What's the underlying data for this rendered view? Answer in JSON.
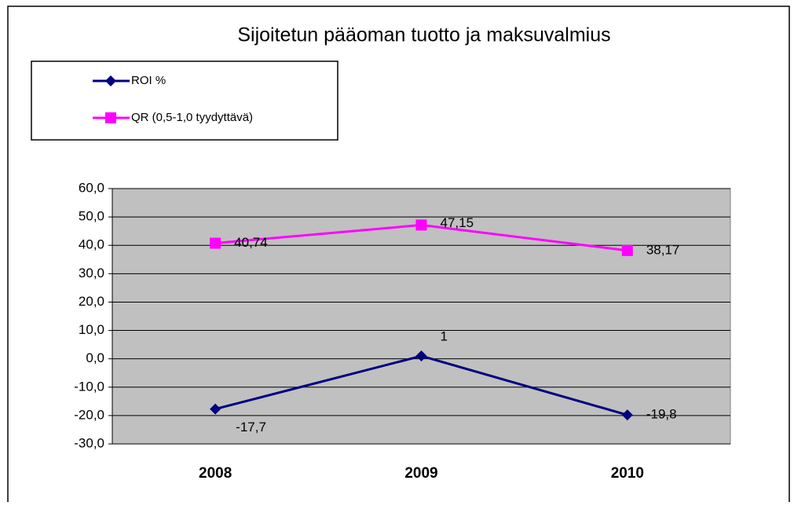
{
  "chart_data": {
    "type": "line",
    "title": "Sijoitetun pääoman tuotto ja maksuvalmius",
    "categories": [
      "2008",
      "2009",
      "2010"
    ],
    "series": [
      {
        "name": "ROI %",
        "color": "#000080",
        "marker": "diamond",
        "values": [
          -17.7,
          1,
          -19.8
        ],
        "value_labels": [
          "-17,7",
          "1",
          "-19,8"
        ]
      },
      {
        "name": "QR (0,5-1,0 tyydyttävä)",
        "color": "#ff00ff",
        "marker": "square",
        "values": [
          40.74,
          47.15,
          38.17
        ],
        "value_labels": [
          "40,74",
          "47,15",
          "38,17"
        ]
      }
    ],
    "ylim": [
      -30,
      60
    ],
    "yticks": [
      {
        "value": -30,
        "label": "-30,0"
      },
      {
        "value": -20,
        "label": "-20,0"
      },
      {
        "value": -10,
        "label": "-10,0"
      },
      {
        "value": 0,
        "label": "0,0"
      },
      {
        "value": 10,
        "label": "10,0"
      },
      {
        "value": 20,
        "label": "20,0"
      },
      {
        "value": 30,
        "label": "30,0"
      },
      {
        "value": 40,
        "label": "40,0"
      },
      {
        "value": 50,
        "label": "50,0"
      },
      {
        "value": 60,
        "label": "60,0"
      }
    ],
    "grid": true,
    "legend": "top-left"
  }
}
